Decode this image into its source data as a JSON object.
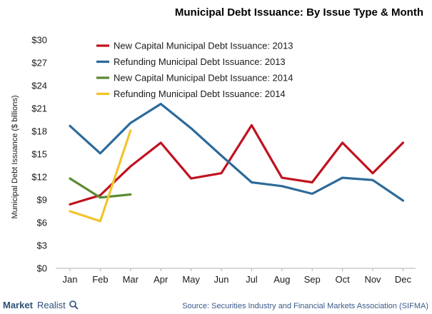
{
  "chart_data": {
    "type": "line",
    "title": "Municipal Debt Issuance: By Issue Type & Month",
    "ylabel": "Municipal Debt Issuance ($ billions)",
    "xlabel": "",
    "categories": [
      "Jan",
      "Feb",
      "Mar",
      "Apr",
      "May",
      "Jun",
      "Jul",
      "Aug",
      "Sep",
      "Oct",
      "Nov",
      "Dec"
    ],
    "yticks": [
      "$0",
      "$3",
      "$6",
      "$9",
      "$12",
      "$15",
      "$18",
      "$21",
      "$24",
      "$27",
      "$30"
    ],
    "ylim": [
      0,
      30
    ],
    "grid": false,
    "legend_position": "top",
    "series": [
      {
        "name": "New Capital Municipal Debt Issuance: 2013",
        "color": "#c0121f",
        "values": [
          8.4,
          9.6,
          13.4,
          16.5,
          11.8,
          12.5,
          18.8,
          11.9,
          11.3,
          16.5,
          12.5,
          16.5
        ]
      },
      {
        "name": "Refunding Municipal Debt Issuance: 2013",
        "color": "#2c6a9a",
        "values": [
          18.7,
          15.1,
          19.1,
          21.6,
          18.4,
          14.8,
          11.3,
          10.8,
          9.8,
          11.9,
          11.6,
          8.9
        ]
      },
      {
        "name": "New Capital Municipal Debt Issuance: 2014",
        "color": "#5c8a32",
        "values": [
          11.8,
          9.3,
          9.7,
          null,
          null,
          null,
          null,
          null,
          null,
          null,
          null,
          null
        ]
      },
      {
        "name": "Refunding Municipal Debt Issuance: 2014",
        "color": "#f2c42c",
        "values": [
          7.5,
          6.2,
          18.1,
          null,
          null,
          null,
          null,
          null,
          null,
          null,
          null,
          null
        ]
      }
    ]
  },
  "footer": {
    "source": "Source: Securities Industry and Financial Markets Association (SIFMA)",
    "brand_bold": "Market",
    "brand_light": "Realist"
  }
}
